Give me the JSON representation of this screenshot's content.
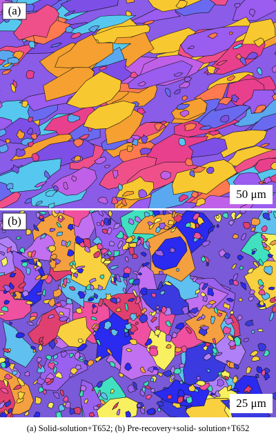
{
  "panels": [
    {
      "label": "(a)",
      "scale_bar": "50 μm"
    },
    {
      "label": "(b)",
      "scale_bar": "25 μm"
    }
  ],
  "caption": "(a)  Solid-solution+T652;  (b)  Pre-recovery+solid- solution+T652"
}
